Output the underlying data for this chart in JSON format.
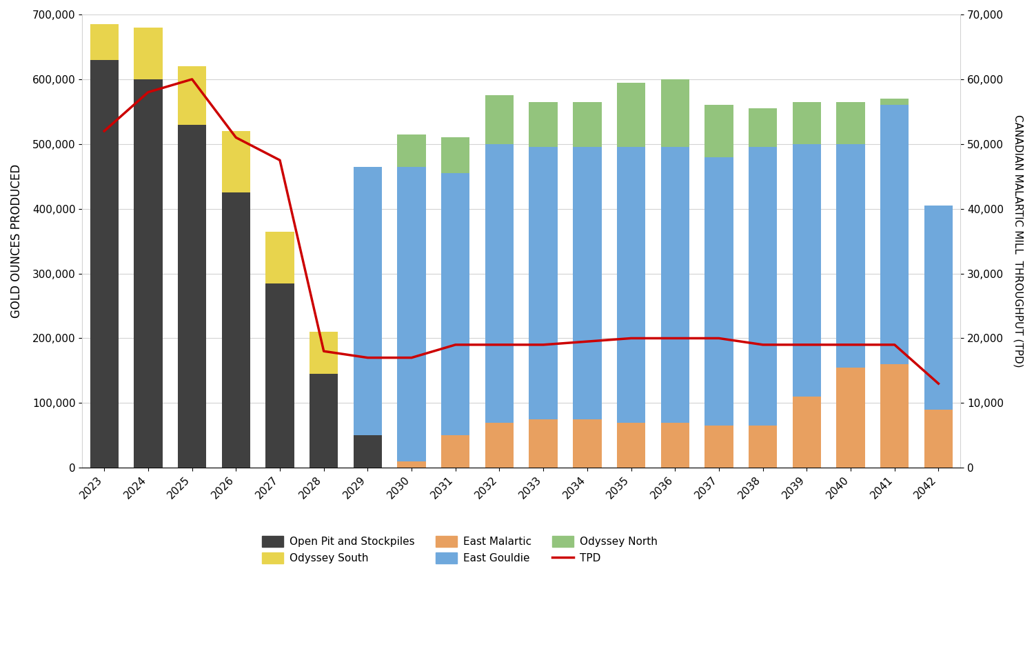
{
  "years": [
    2023,
    2024,
    2025,
    2026,
    2027,
    2028,
    2029,
    2030,
    2031,
    2032,
    2033,
    2034,
    2035,
    2036,
    2037,
    2038,
    2039,
    2040,
    2041,
    2042
  ],
  "open_pit": [
    630000,
    600000,
    530000,
    425000,
    285000,
    145000,
    50000,
    0,
    0,
    0,
    0,
    0,
    0,
    0,
    0,
    0,
    0,
    0,
    0,
    0
  ],
  "odyssey_south": [
    55000,
    80000,
    90000,
    95000,
    80000,
    65000,
    0,
    0,
    0,
    0,
    0,
    0,
    0,
    0,
    0,
    0,
    0,
    0,
    0,
    0
  ],
  "east_malartic": [
    0,
    0,
    0,
    0,
    0,
    0,
    10000,
    10000,
    50000,
    70000,
    75000,
    75000,
    70000,
    70000,
    65000,
    65000,
    110000,
    155000,
    160000,
    90000
  ],
  "east_gouldie": [
    0,
    0,
    0,
    0,
    0,
    0,
    455000,
    455000,
    405000,
    430000,
    420000,
    420000,
    425000,
    425000,
    415000,
    430000,
    390000,
    345000,
    400000,
    315000
  ],
  "odyssey_north": [
    0,
    0,
    0,
    0,
    0,
    0,
    0,
    50000,
    55000,
    75000,
    70000,
    70000,
    100000,
    105000,
    80000,
    60000,
    65000,
    65000,
    10000,
    0
  ],
  "tpd": [
    52000,
    58000,
    60000,
    51000,
    47500,
    18000,
    17000,
    17000,
    19000,
    19000,
    19000,
    19500,
    20000,
    20000,
    20000,
    19000,
    19000,
    19000,
    19000,
    13000
  ],
  "colors": {
    "open_pit": "#404040",
    "odyssey_south": "#e8d44d",
    "east_malartic": "#e8a060",
    "east_gouldie": "#6fa8dc",
    "odyssey_north": "#93c47d",
    "tpd_line": "#cc0000"
  },
  "ylabel_left": "GOLD OUNCES PRODUCED",
  "ylabel_right": "CANADIAN MALARTIC MILL  THROUGHPUT (TPD)",
  "ylim_left": [
    0,
    700000
  ],
  "ylim_right": [
    0,
    70000
  ],
  "yticks_left": [
    0,
    100000,
    200000,
    300000,
    400000,
    500000,
    600000,
    700000
  ],
  "yticks_right": [
    0,
    10000,
    20000,
    30000,
    40000,
    50000,
    60000,
    70000
  ],
  "background_color": "#ffffff",
  "legend_order": [
    "Open Pit and Stockpiles",
    "Odyssey South",
    "East Malartic",
    "East Gouldie",
    "Odyssey North",
    "TPD"
  ]
}
